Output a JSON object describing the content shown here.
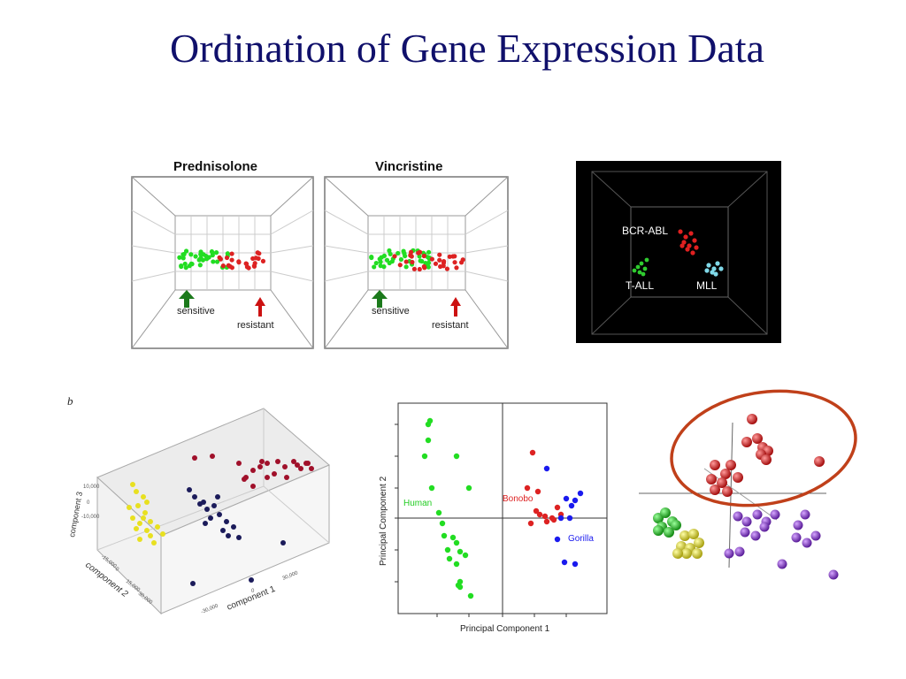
{
  "slide": {
    "title": "Ordination of Gene Expression Data"
  },
  "panels": {
    "prednisolone": {
      "title": "Prednisolone",
      "sensitive": "sensitive",
      "resistant": "resistant"
    },
    "vincristine": {
      "title": "Vincristine",
      "sensitive": "sensitive",
      "resistant": "resistant"
    },
    "leukemia": {
      "labels": {
        "bcr": "BCR-ABL",
        "tall": "T-ALL",
        "mll": "MLL"
      }
    },
    "pca3d": {
      "panel_letter": "b",
      "axis1": "component 1",
      "axis2": "component 2",
      "axis3": "component 3",
      "ticks1": [
        "-30,000",
        "0",
        "30,000"
      ],
      "ticks2": [
        "-15,000",
        "0",
        "15,000",
        "30,000"
      ],
      "ticks3": [
        "10,000",
        "0",
        "-10,000"
      ]
    },
    "primates": {
      "xlabel": "Principal Component 1",
      "ylabel": "Principal Component 2",
      "groups": {
        "human": "Human",
        "bonobo": "Bonobo",
        "gorilla": "Gorilla"
      }
    }
  },
  "colors": {
    "title": "#10106b",
    "green": "#22dd22",
    "red": "#dd2222",
    "blue": "#1a1aee",
    "cyan": "#7fd8e8",
    "yellow": "#e8e020",
    "purple": "#8833cc",
    "navy": "#1b1b5a",
    "crimson": "#a0102a",
    "ellipse": "#c0401a"
  }
}
